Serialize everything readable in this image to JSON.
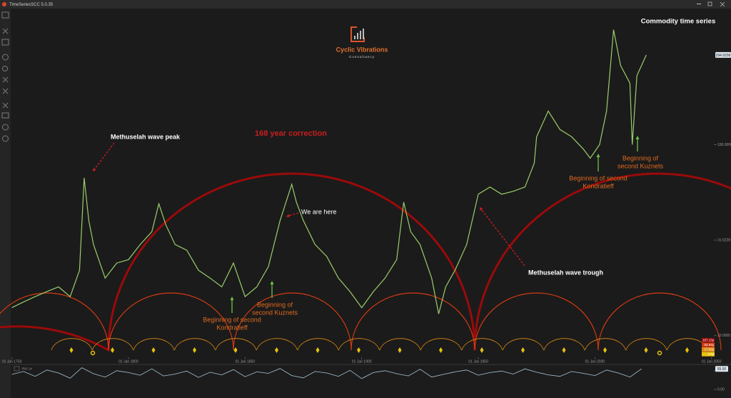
{
  "window": {
    "title": "TimeSeriesSCC 5.0.35"
  },
  "logo": {
    "name": "Cyclic Vibrations",
    "tagline": "Consultancy"
  },
  "chart_data": {
    "type": "line",
    "title": "Commodity time series",
    "log_scale": true,
    "xlim": [
      1749.5,
      2051
    ],
    "ylim": [
      7.7,
      525
    ],
    "xticks": [
      {
        "value": 1750,
        "label": "01 Jan 1750"
      },
      {
        "value": 1800,
        "label": "01 Jan 1800"
      },
      {
        "value": 1850,
        "label": "01 Jan 1850"
      },
      {
        "value": 1900,
        "label": "01 Jan 1900"
      },
      {
        "value": 1950,
        "label": "01 Jan 1950"
      },
      {
        "value": 2000,
        "label": "01 Jan 2000"
      },
      {
        "value": 2050,
        "label": "01 Jan 2050"
      }
    ],
    "yticks": [
      {
        "value": 100,
        "label": "100.0000"
      },
      {
        "value": 31.6228,
        "label": "31.6228"
      },
      {
        "value": 10,
        "label": "10.0000"
      }
    ],
    "last_value": 294.9299,
    "series": [
      {
        "name": "Commodity",
        "color": "#9acd6a",
        "x": [
          1750,
          1755,
          1760,
          1765,
          1770,
          1775,
          1779,
          1781,
          1783,
          1785,
          1790,
          1795,
          1800,
          1805,
          1810,
          1813,
          1816,
          1820,
          1825,
          1830,
          1835,
          1840,
          1845,
          1850,
          1855,
          1860,
          1865,
          1870,
          1872,
          1875,
          1880,
          1885,
          1890,
          1895,
          1900,
          1905,
          1910,
          1915,
          1918,
          1921,
          1925,
          1930,
          1933,
          1936,
          1940,
          1945,
          1950,
          1955,
          1960,
          1965,
          1970,
          1974,
          1975,
          1980,
          1985,
          1990,
          1995,
          1998,
          2002,
          2005,
          2008,
          2011,
          2015,
          2016,
          2018,
          2020,
          2022
        ],
        "values": [
          14,
          15,
          16,
          17,
          18,
          16,
          22,
          67,
          40,
          30,
          20,
          24,
          25,
          30,
          35,
          49,
          38,
          30,
          28,
          22,
          20,
          18,
          24,
          16,
          18,
          23,
          40,
          62,
          50,
          40,
          30,
          26,
          20,
          17,
          14,
          17,
          20,
          25,
          50,
          35,
          30,
          20,
          13,
          18,
          22,
          30,
          55,
          60,
          55,
          57,
          60,
          80,
          110,
          150,
          120,
          110,
          95,
          85,
          100,
          150,
          400,
          260,
          210,
          100,
          230,
          260,
          295
        ]
      }
    ],
    "cycles": [
      {
        "label": "157.13y",
        "color": "#9b0a0a"
      },
      {
        "label": "52.64y",
        "color": "#d23a12"
      },
      {
        "label": "17.52y",
        "color": "#e08a12"
      },
      {
        "label": "4.5y",
        "color": "#e8c20e"
      }
    ],
    "annotations": [
      {
        "lines": [
          "Methuselah wave peak"
        ]
      },
      {
        "lines": [
          "168 year correction"
        ]
      },
      {
        "lines": [
          "We are here"
        ]
      },
      {
        "lines": [
          "Beginning of",
          "second Kuznets"
        ]
      },
      {
        "lines": [
          "Beginning of second",
          "Kondratieff"
        ]
      },
      {
        "lines": [
          "Methuselah wave trough"
        ]
      },
      {
        "lines": [
          "Beginning of second",
          "Kondratieff"
        ]
      },
      {
        "lines": [
          "Beginning of",
          "second Kuznets"
        ]
      }
    ]
  },
  "oscillator": {
    "type": "line",
    "name": "RSI 14",
    "color": "#a9c6d8",
    "ylim": [
      0,
      63
    ],
    "yticks": [
      {
        "value": 50,
        "label": "50.00"
      },
      {
        "value": 0,
        "label": "0.00"
      }
    ],
    "last_value": {
      "value": 55,
      "label": "55.00"
    },
    "x": [
      1750,
      1755,
      1760,
      1765,
      1770,
      1775,
      1780,
      1785,
      1790,
      1795,
      1800,
      1805,
      1810,
      1815,
      1820,
      1825,
      1830,
      1835,
      1840,
      1845,
      1850,
      1855,
      1860,
      1865,
      1870,
      1875,
      1880,
      1885,
      1890,
      1895,
      1900,
      1905,
      1910,
      1915,
      1920,
      1925,
      1930,
      1935,
      1940,
      1945,
      1950,
      1955,
      1960,
      1965,
      1970,
      1975,
      1980,
      1985,
      1990,
      1995,
      2000,
      2005,
      2010,
      2015,
      2020
    ],
    "values": [
      40,
      48,
      35,
      52,
      44,
      30,
      58,
      42,
      33,
      50,
      45,
      38,
      55,
      36,
      41,
      49,
      32,
      46,
      39,
      53,
      34,
      47,
      43,
      56,
      37,
      31,
      48,
      44,
      35,
      51,
      29,
      45,
      50,
      42,
      36,
      54,
      33,
      40,
      47,
      52,
      38,
      45,
      49,
      41,
      55,
      46,
      39,
      35,
      48,
      43,
      37,
      52,
      44,
      33,
      55
    ]
  }
}
